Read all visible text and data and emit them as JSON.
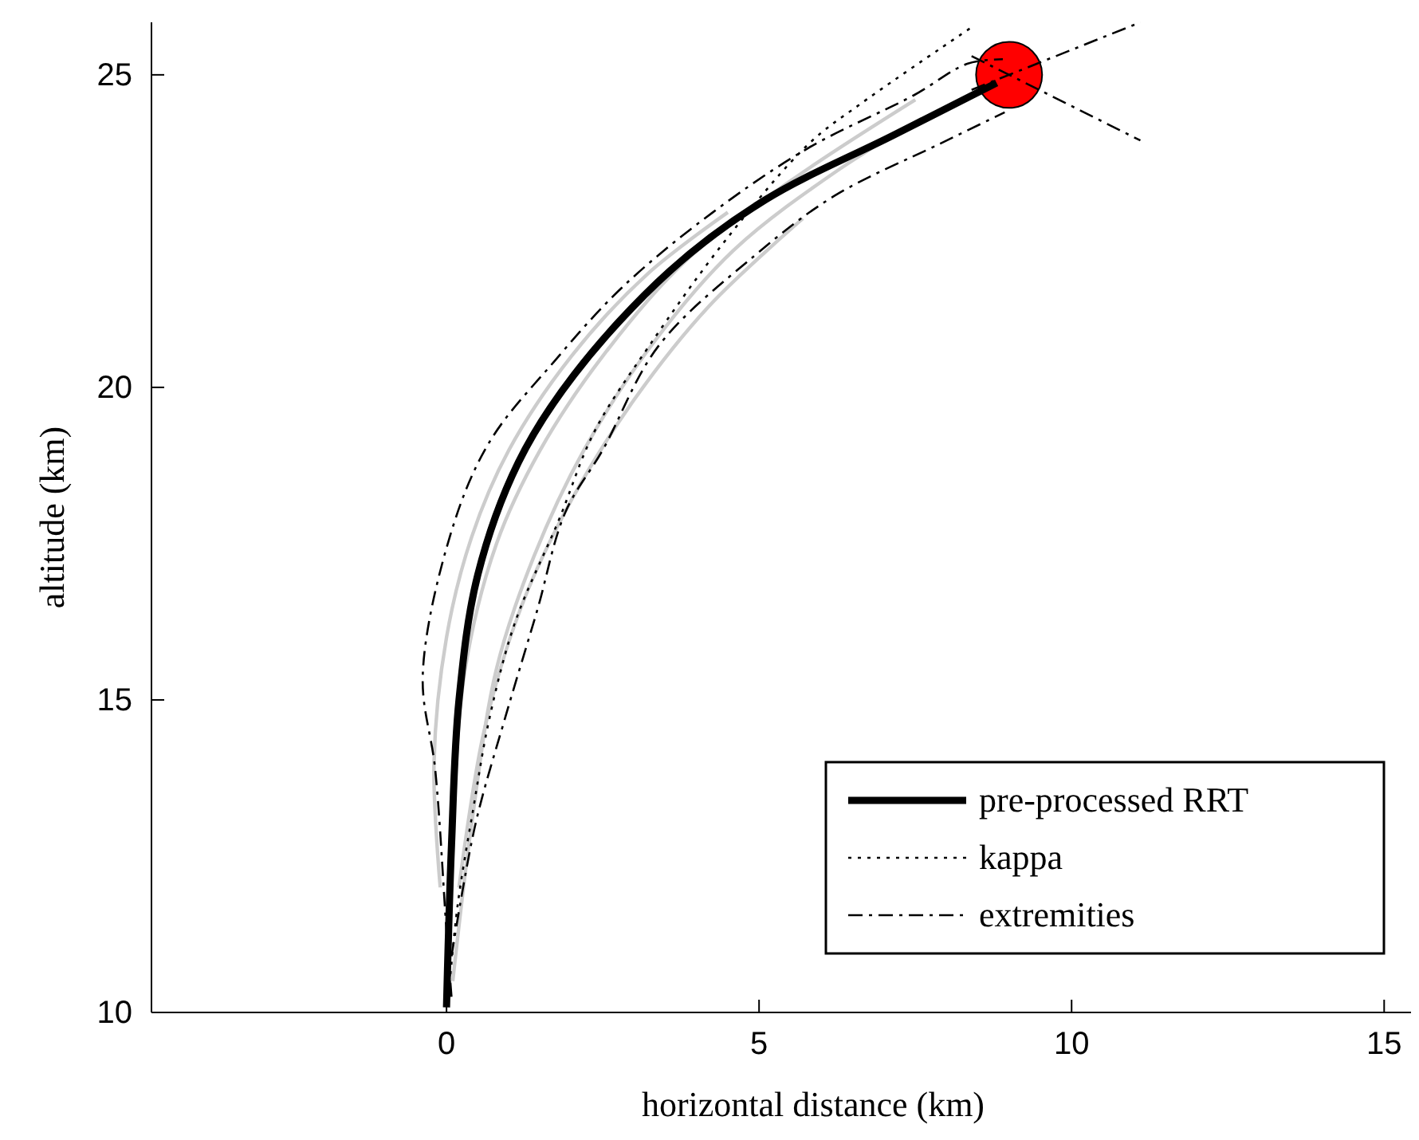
{
  "chart_data": {
    "type": "line",
    "xlabel": "horizontal distance (km)",
    "ylabel": "altitude (km)",
    "xlim": [
      -4.72,
      15.43
    ],
    "ylim": [
      10,
      25.84
    ],
    "xticks": [
      0,
      5,
      10,
      15
    ],
    "yticks": [
      10,
      15,
      20,
      25
    ],
    "grid": false,
    "legend": "bottom right",
    "series": [
      {
        "color": "#cccccc",
        "x": [
          0,
          0.1,
          0.3,
          0.8,
          1.5,
          2.5,
          3.8,
          5.5,
          7.5
        ],
        "values": [
          10.5,
          13,
          15.5,
          17.5,
          19,
          20.5,
          22,
          23.3,
          24.6
        ]
      },
      {
        "color": "#cccccc",
        "x": [
          0.1,
          0.4,
          0.8,
          1.4,
          2.2,
          3.3,
          4.6,
          6.3,
          7.6
        ],
        "values": [
          10.5,
          13,
          15.5,
          17.3,
          19,
          20.7,
          22.2,
          23.5,
          24.3
        ]
      },
      {
        "color": "#cccccc",
        "x": [
          -0.1,
          -0.2,
          0,
          0.4,
          1,
          2,
          3.2,
          4.5
        ],
        "values": [
          12,
          14,
          16,
          17.6,
          19,
          20.5,
          21.8,
          22.8
        ]
      },
      {
        "color": "#cccccc",
        "x": [
          0.2,
          0.6,
          1.2,
          2,
          3,
          4.2,
          5.7
        ],
        "values": [
          12,
          14.5,
          16.5,
          18.2,
          19.8,
          21.3,
          22.7
        ]
      },
      {
        "name": "pre-processed RRT",
        "color": "#000000",
        "line_style": "solid",
        "x": [
          0,
          0.08,
          0.2,
          0.5,
          1.15,
          2.04,
          3.57,
          5.1,
          7.14,
          8.8
        ],
        "values": [
          10.08,
          12.68,
          15,
          17,
          18.8,
          20.2,
          21.86,
          23,
          24.03,
          24.87
        ]
      },
      {
        "name": "kappa",
        "color": "#000000",
        "line_style": "dotted",
        "x": [
          0.05,
          0.18,
          0.43,
          0.69,
          1.1,
          1.79,
          2.37,
          3.24,
          4.5,
          5.8,
          6.63,
          8.37
        ],
        "values": [
          10.46,
          11.73,
          13.27,
          14.72,
          16.25,
          17.86,
          19.3,
          20.66,
          22.4,
          23.9,
          24.54,
          25.74
        ]
      },
      {
        "name": "extremities",
        "color": "#000000",
        "line_style": "dashed",
        "x": [
          0.08,
          0,
          -0.18,
          -0.38,
          0.08,
          0.69,
          1.71,
          2.81,
          4.26,
          5.79,
          7.47,
          8.34,
          8.9
        ],
        "values": [
          10.25,
          11.3,
          13.88,
          15.4,
          17.7,
          19.13,
          20.4,
          21.6,
          22.8,
          23.83,
          24.67,
          25.18,
          25.25
        ]
      },
      {
        "color": "#000000",
        "line_style": "dashed",
        "x": [
          0.08,
          0.46,
          0.94,
          1.45,
          1.9,
          2.5,
          3.39,
          4.92,
          6.2,
          7.9,
          8.93
        ],
        "values": [
          10.9,
          13,
          14.72,
          16.43,
          18,
          19,
          20.66,
          22.1,
          23.06,
          23.9,
          24.4
        ]
      },
      {
        "color": "#000000",
        "line_style": "dashed",
        "x": [
          8.4,
          11.1
        ],
        "values": [
          24.76,
          25.84
        ]
      },
      {
        "color": "#000000",
        "line_style": "dashed",
        "x": [
          8.4,
          11.1
        ],
        "values": [
          25.3,
          23.95
        ]
      },
      {
        "type": "scatter",
        "color": "#ff0000",
        "marker": "circle",
        "x": [
          9
        ],
        "values": [
          25
        ]
      }
    ]
  }
}
